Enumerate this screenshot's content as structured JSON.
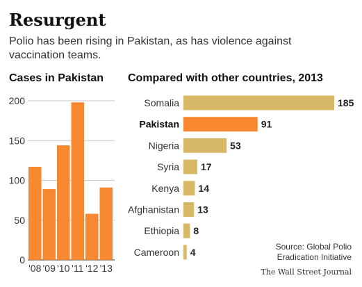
{
  "header": {
    "title": "Resurgent",
    "subtitle": "Polio has been rising in Pakistan, as has violence against vaccination teams."
  },
  "source": {
    "line1": "Source: Global Polio",
    "line2": "Eradication Initiative",
    "publisher": "The Wall Street Journal"
  },
  "colors": {
    "pakistan": "#f7882f",
    "others": "#d6b867",
    "grid": "#c9c9c9"
  },
  "chart_data": [
    {
      "type": "bar",
      "title": "Cases in Pakistan",
      "categories": [
        "'08",
        "'09",
        "'10",
        "'11",
        "'12",
        "'13"
      ],
      "values": [
        117,
        89,
        144,
        198,
        58,
        91
      ],
      "ylim": [
        0,
        200
      ],
      "yticks": [
        0,
        50,
        100,
        150,
        200
      ],
      "grid": true
    },
    {
      "type": "bar",
      "orientation": "horizontal",
      "title": "Compared with other countries, 2013",
      "categories": [
        "Somalia",
        "Pakistan",
        "Nigeria",
        "Syria",
        "Kenya",
        "Afghanistan",
        "Ethiopia",
        "Cameroon"
      ],
      "values": [
        185,
        91,
        53,
        17,
        14,
        13,
        8,
        4
      ],
      "highlight": "Pakistan"
    }
  ]
}
